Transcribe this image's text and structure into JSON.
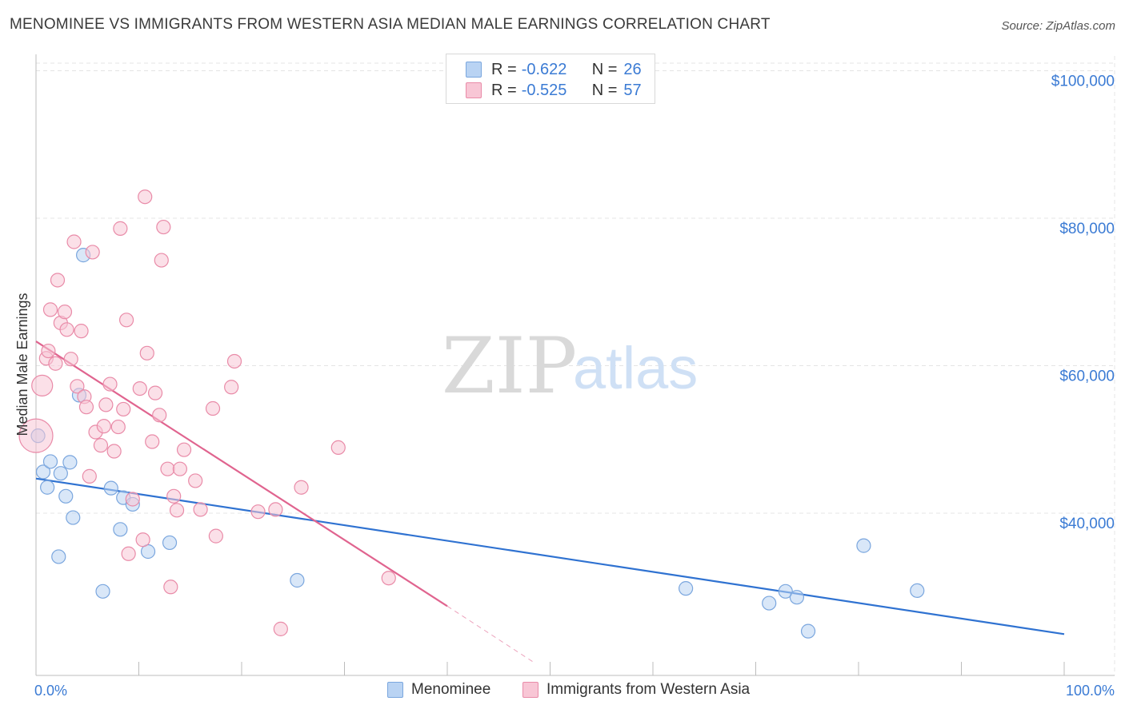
{
  "title": "MENOMINEE VS IMMIGRANTS FROM WESTERN ASIA MEDIAN MALE EARNINGS CORRELATION CHART",
  "source": "Source: ZipAtlas.com",
  "watermark": {
    "zip": "ZIP",
    "atlas": "atlas"
  },
  "colors": {
    "blue_fill": "#b9d3f3",
    "blue_stroke": "#7aa6de",
    "blue_line": "#2f72d1",
    "pink_fill": "#f8c6d5",
    "pink_stroke": "#e98ba8",
    "pink_line": "#e0648f",
    "grid": "#e4e4e4",
    "axis_text": "#3b7bd4"
  },
  "legend": {
    "rows": [
      {
        "r_label": "R =",
        "r_value": "-0.622",
        "n_label": "N =",
        "n_value": "26"
      },
      {
        "r_label": "R =",
        "r_value": "-0.525",
        "n_label": "N =",
        "n_value": "57"
      }
    ]
  },
  "bottom_legend": [
    "Menominee",
    "Immigrants from Western Asia"
  ],
  "chart_data": {
    "type": "scatter",
    "ylabel": "Median Male Earnings",
    "xlabel": "",
    "x_tick_labels": {
      "left": "0.0%",
      "right": "100.0%"
    },
    "xlim": [
      0,
      100
    ],
    "ylim": [
      18000,
      102000
    ],
    "y_ticks": [
      {
        "value": 40000,
        "label": "$40,000"
      },
      {
        "value": 60000,
        "label": "$60,000"
      },
      {
        "value": 80000,
        "label": "$80,000"
      },
      {
        "value": 100000,
        "label": "$100,000"
      }
    ],
    "series": [
      {
        "name": "Menominee",
        "color": "blue",
        "r": -0.622,
        "n": 26,
        "trend": {
          "x0": 0,
          "y0": 44700,
          "x1": 100,
          "y1": 23600
        },
        "points": [
          [
            0.2,
            50500
          ],
          [
            0.7,
            45600
          ],
          [
            1.1,
            43500
          ],
          [
            1.4,
            47000
          ],
          [
            2.2,
            34100
          ],
          [
            2.4,
            45400
          ],
          [
            2.9,
            42300
          ],
          [
            3.3,
            46900
          ],
          [
            3.6,
            39400
          ],
          [
            4.2,
            56000
          ],
          [
            4.6,
            75000
          ],
          [
            6.5,
            29400
          ],
          [
            7.3,
            43400
          ],
          [
            8.2,
            37800
          ],
          [
            8.5,
            42100
          ],
          [
            9.4,
            41200
          ],
          [
            10.9,
            34800
          ],
          [
            13.0,
            36000
          ],
          [
            25.4,
            30900
          ],
          [
            63.2,
            29800
          ],
          [
            71.3,
            27800
          ],
          [
            72.9,
            29400
          ],
          [
            74.0,
            28600
          ],
          [
            75.1,
            24000
          ],
          [
            80.5,
            35600
          ],
          [
            85.7,
            29500
          ]
        ]
      },
      {
        "name": "Immigrants from Western Asia",
        "color": "pink",
        "r": -0.525,
        "n": 57,
        "trend": {
          "x0": 0,
          "y0": 63300,
          "x1": 40,
          "y1": 27400
        },
        "trend_dashed": {
          "x0": 40,
          "y0": 27400,
          "x1": 48.5,
          "y1": 19700
        },
        "points": [
          [
            0.0,
            50500
          ],
          [
            0.6,
            57300
          ],
          [
            1.0,
            61000
          ],
          [
            1.2,
            62000
          ],
          [
            1.4,
            67600
          ],
          [
            1.9,
            60300
          ],
          [
            2.1,
            71600
          ],
          [
            2.4,
            65800
          ],
          [
            2.8,
            67300
          ],
          [
            3.0,
            64900
          ],
          [
            3.4,
            60900
          ],
          [
            3.7,
            76800
          ],
          [
            4.0,
            57200
          ],
          [
            4.4,
            64700
          ],
          [
            4.7,
            55800
          ],
          [
            4.9,
            54400
          ],
          [
            5.2,
            45000
          ],
          [
            5.5,
            75400
          ],
          [
            5.8,
            51000
          ],
          [
            6.3,
            49200
          ],
          [
            6.6,
            51800
          ],
          [
            6.8,
            54700
          ],
          [
            7.2,
            57500
          ],
          [
            7.6,
            48400
          ],
          [
            8.0,
            51700
          ],
          [
            8.2,
            78600
          ],
          [
            8.5,
            54100
          ],
          [
            8.8,
            66200
          ],
          [
            9.0,
            34500
          ],
          [
            9.4,
            41900
          ],
          [
            10.1,
            56900
          ],
          [
            10.4,
            36400
          ],
          [
            10.6,
            82900
          ],
          [
            10.8,
            61700
          ],
          [
            11.3,
            49700
          ],
          [
            11.6,
            56300
          ],
          [
            12.0,
            53300
          ],
          [
            12.2,
            74300
          ],
          [
            12.4,
            78800
          ],
          [
            12.8,
            46000
          ],
          [
            13.1,
            30000
          ],
          [
            13.4,
            42300
          ],
          [
            13.7,
            40400
          ],
          [
            14.0,
            46000
          ],
          [
            14.4,
            48600
          ],
          [
            15.5,
            44400
          ],
          [
            16.0,
            40500
          ],
          [
            17.2,
            54200
          ],
          [
            17.5,
            36900
          ],
          [
            19.0,
            57100
          ],
          [
            19.3,
            60600
          ],
          [
            21.6,
            40200
          ],
          [
            23.3,
            40500
          ],
          [
            23.8,
            24300
          ],
          [
            25.8,
            43500
          ],
          [
            29.4,
            48900
          ],
          [
            34.3,
            31200
          ]
        ]
      }
    ]
  }
}
